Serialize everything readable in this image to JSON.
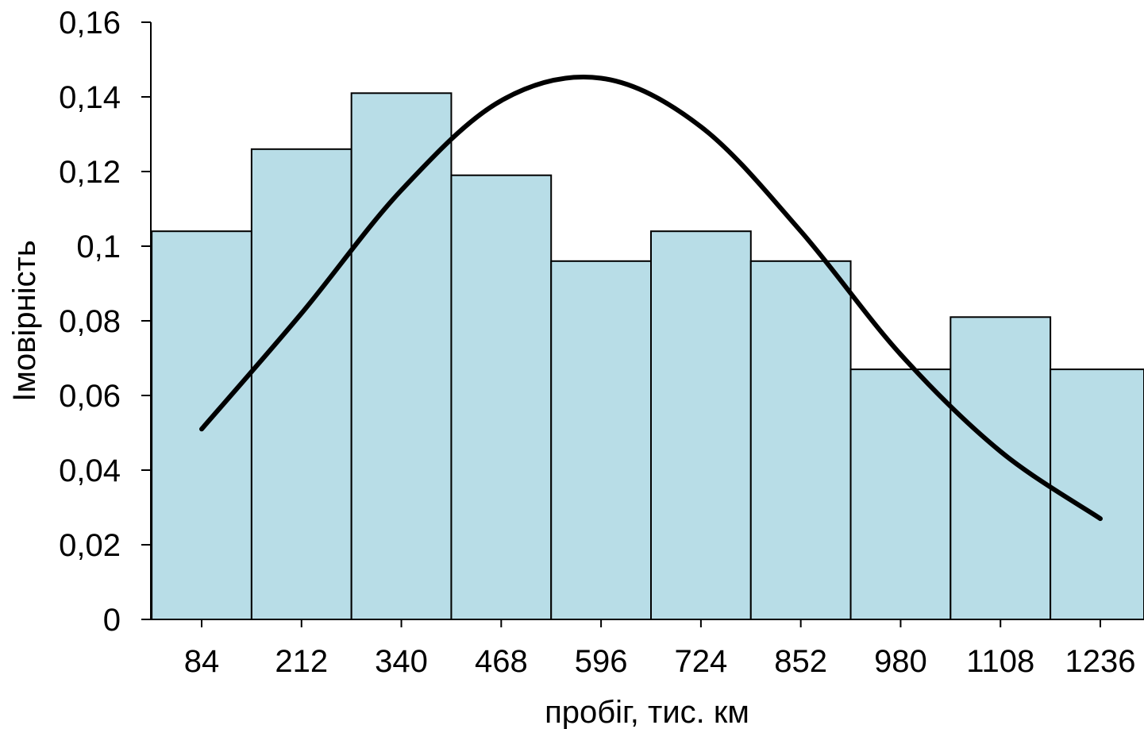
{
  "chart_data": {
    "type": "bar",
    "title": "",
    "xlabel": "пробіг, тис. км",
    "ylabel": "Імовірність",
    "categories": [
      "84",
      "212",
      "340",
      "468",
      "596",
      "724",
      "852",
      "980",
      "1108",
      "1236"
    ],
    "x": [
      84,
      212,
      340,
      468,
      596,
      724,
      852,
      980,
      1108,
      1236
    ],
    "bin_width": 128,
    "series": [
      {
        "type": "bar",
        "values": [
          0.104,
          0.126,
          0.141,
          0.119,
          0.096,
          0.104,
          0.096,
          0.067,
          0.081,
          0.067
        ]
      },
      {
        "type": "line",
        "values": [
          0.051,
          0.082,
          0.115,
          0.139,
          0.145,
          0.132,
          0.104,
          0.071,
          0.045,
          0.027
        ]
      }
    ],
    "ylim": [
      0,
      0.16
    ],
    "yticks": [
      0,
      0.02,
      0.04,
      0.06,
      0.08,
      0.1,
      0.12,
      0.14,
      0.16
    ],
    "ytick_labels": [
      "0",
      "0,02",
      "0,04",
      "0,06",
      "0,08",
      "0,1",
      "0,12",
      "0,14",
      "0,16"
    ],
    "grid": false,
    "colors": {
      "bar_fill": "#b8dde7",
      "bar_stroke": "#000000",
      "curve": "#000000",
      "axis": "#000000"
    }
  }
}
